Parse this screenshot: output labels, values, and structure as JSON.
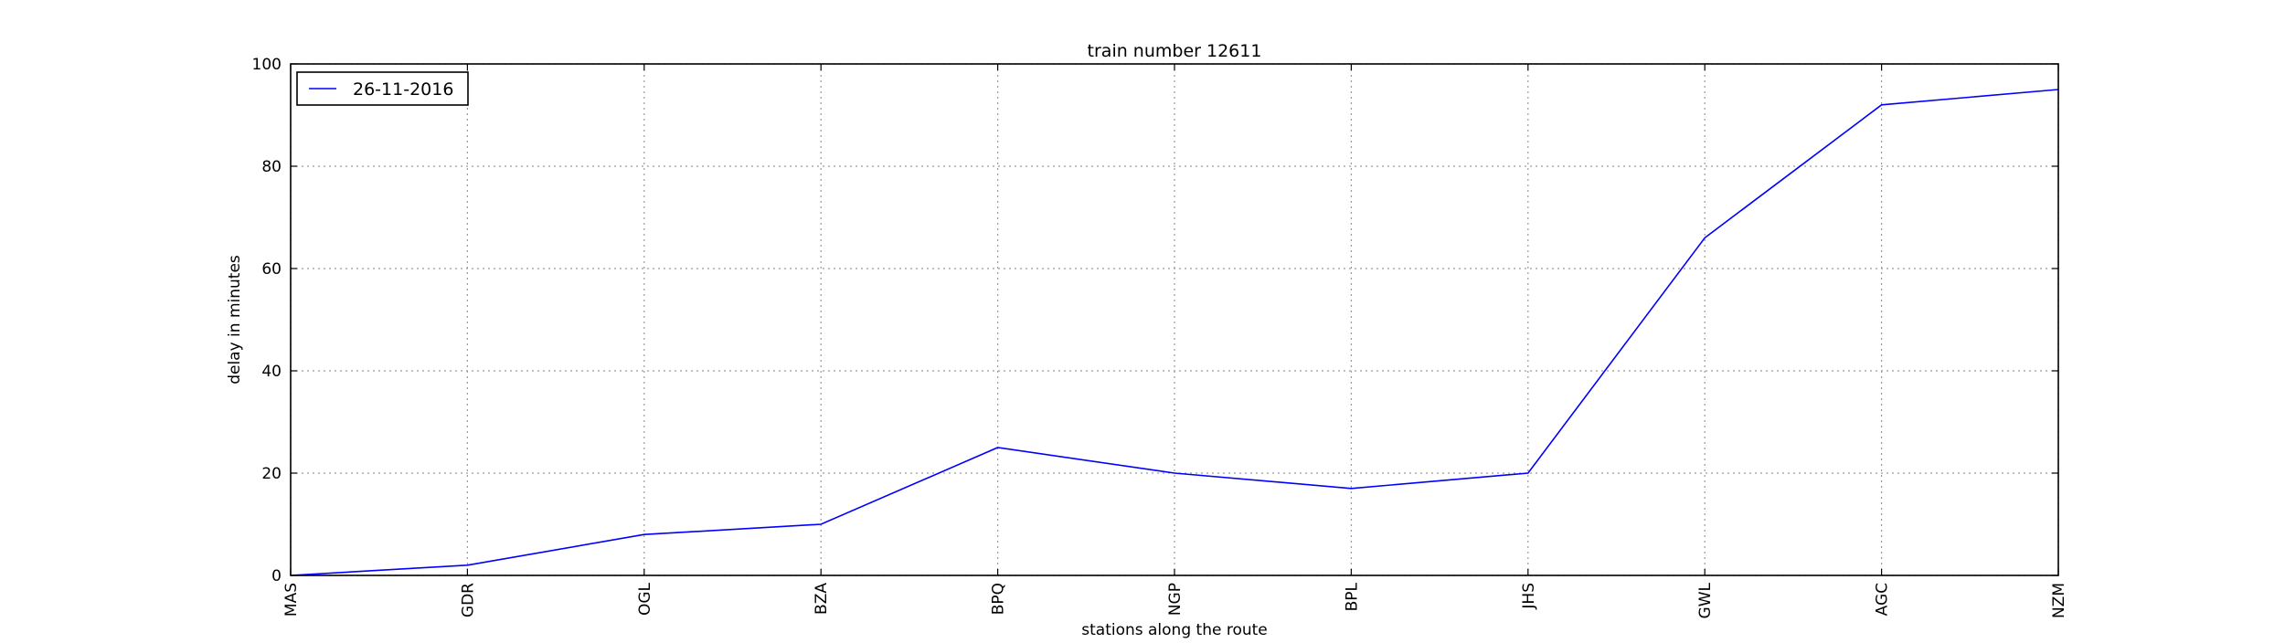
{
  "chart_data": {
    "type": "line",
    "title": "train number 12611",
    "xlabel": "stations along the route",
    "ylabel": "delay in minutes",
    "categories": [
      "MAS",
      "GDR",
      "OGL",
      "BZA",
      "BPQ",
      "NGP",
      "BPL",
      "JHS",
      "GWL",
      "AGC",
      "NZM"
    ],
    "ylim": [
      0,
      100
    ],
    "yticks": [
      0,
      20,
      40,
      60,
      80,
      100
    ],
    "grid": true,
    "legend_position": "top-left",
    "series": [
      {
        "name": "26-11-2016",
        "color": "#0000ff",
        "values": [
          0,
          2,
          8,
          10,
          25,
          20,
          17,
          20,
          66,
          92,
          95
        ]
      }
    ]
  }
}
